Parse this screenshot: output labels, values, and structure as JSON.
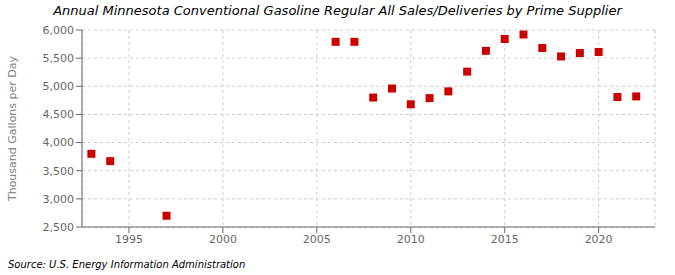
{
  "chart_data": {
    "type": "scatter",
    "title": "Annual Minnesota Conventional Gasoline Regular All Sales/Deliveries by Prime Supplier",
    "ylabel": "Thousand Gallons per Day",
    "annotation": "Source: U.S. Energy Information Administration",
    "x": [
      1993,
      1994,
      1997,
      2006,
      2007,
      2008,
      2009,
      2010,
      2011,
      2012,
      2013,
      2014,
      2015,
      2016,
      2017,
      2018,
      2019,
      2020,
      2021,
      2022
    ],
    "values": [
      3800,
      3670,
      2700,
      5790,
      5790,
      4800,
      4960,
      4680,
      4790,
      4910,
      5260,
      5630,
      5840,
      5920,
      5680,
      5530,
      5590,
      5610,
      4810,
      4820
    ],
    "color": "#cc0000",
    "marker": "square",
    "xlim": [
      1992.5,
      2023
    ],
    "xticks": [
      1995,
      2000,
      2005,
      2010,
      2015,
      2020
    ],
    "ylim": [
      2500,
      6000
    ],
    "yticks": [
      {
        "value": 2500,
        "label": "2,500"
      },
      {
        "value": 3000,
        "label": "3,000"
      },
      {
        "value": 3500,
        "label": "3,500"
      },
      {
        "value": 4000,
        "label": "4,000"
      },
      {
        "value": 4500,
        "label": "4,500"
      },
      {
        "value": 5000,
        "label": "5,000"
      },
      {
        "value": 5500,
        "label": "5,500"
      },
      {
        "value": 6000,
        "label": "6,000"
      }
    ],
    "grid": true
  }
}
